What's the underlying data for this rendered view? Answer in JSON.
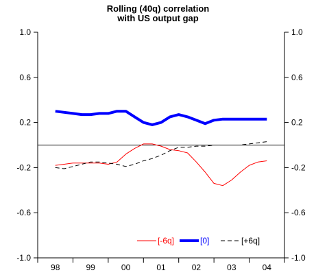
{
  "chart_data": {
    "type": "line",
    "title_line1": "Rolling (40q) correlation",
    "title_line2": "with US output gap",
    "xlabel": "",
    "ylabel": "",
    "x_ticks": [
      "98",
      "99",
      "00",
      "01",
      "02",
      "03",
      "04"
    ],
    "y_ticks": [
      "1.0",
      "0.6",
      "0.2",
      "-0.2",
      "-0.6",
      "-1.0"
    ],
    "y_tick_values": [
      1.0,
      0.6,
      0.2,
      -0.2,
      -0.6,
      -1.0
    ],
    "ylim": [
      -1.0,
      1.0
    ],
    "xlim": [
      0,
      28
    ],
    "zero_line": 0.0,
    "grid": false,
    "legend_position": "bottom-right",
    "x": [
      2,
      3,
      4,
      5,
      6,
      7,
      8,
      9,
      10,
      11,
      12,
      13,
      14,
      15,
      16,
      17,
      18,
      19,
      20,
      21,
      22,
      23,
      24,
      25,
      26
    ],
    "series": [
      {
        "name": "[-6q]",
        "color": "#ff0000",
        "style": "solid",
        "width": 1,
        "values": [
          -0.18,
          -0.17,
          -0.16,
          -0.16,
          -0.16,
          -0.16,
          -0.17,
          -0.15,
          -0.08,
          -0.03,
          0.01,
          0.01,
          -0.01,
          -0.04,
          -0.05,
          -0.07,
          -0.15,
          -0.24,
          -0.34,
          -0.36,
          -0.31,
          -0.24,
          -0.18,
          -0.15,
          -0.14
        ]
      },
      {
        "name": "[0]",
        "color": "#0000ff",
        "style": "solid",
        "width": 4,
        "values": [
          0.3,
          0.29,
          0.28,
          0.27,
          0.27,
          0.28,
          0.28,
          0.3,
          0.3,
          0.25,
          0.2,
          0.18,
          0.2,
          0.25,
          0.27,
          0.25,
          0.22,
          0.19,
          0.22,
          0.23,
          0.23,
          0.23,
          0.23,
          0.23,
          0.23
        ]
      },
      {
        "name": "[+6q]",
        "color": "#000000",
        "style": "dashed",
        "width": 1,
        "values": [
          -0.2,
          -0.21,
          -0.19,
          -0.17,
          -0.15,
          -0.15,
          -0.16,
          -0.17,
          -0.19,
          -0.17,
          -0.14,
          -0.12,
          -0.09,
          -0.05,
          -0.02,
          -0.02,
          -0.01,
          -0.01,
          0.0,
          0.0,
          0.0,
          0.0,
          0.01,
          0.02,
          0.03
        ]
      }
    ]
  }
}
